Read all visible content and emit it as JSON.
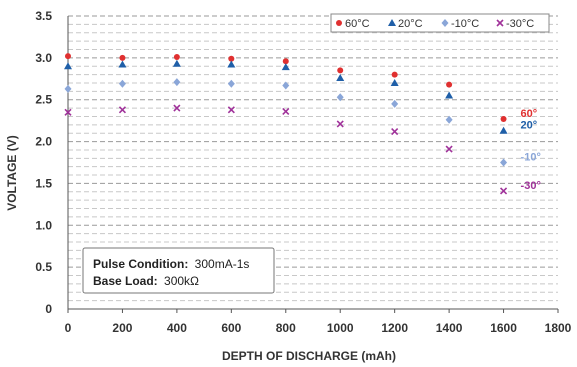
{
  "chart_data": {
    "type": "scatter",
    "xlabel": "DEPTH OF DISCHARGE (mAh)",
    "ylabel": "VOLTAGE (V)",
    "xlim": [
      0,
      1800
    ],
    "ylim": [
      0,
      3.5
    ],
    "x_ticks": [
      0,
      200,
      400,
      600,
      800,
      1000,
      1200,
      1400,
      1600,
      1800
    ],
    "y_ticks": [
      0,
      0.5,
      1.0,
      1.5,
      2.0,
      2.5,
      3.0,
      3.5
    ],
    "y_tick_labels": [
      "0",
      "0.5",
      "1.0",
      "1.5",
      "2.0",
      "2.5",
      "3.0",
      "3.5"
    ],
    "grid": "dashed horizontal",
    "legend_position": "top-right",
    "series": [
      {
        "name": "60°C",
        "end_label": "60°",
        "color": "#e03030",
        "marker": "circle",
        "x": [
          0,
          200,
          400,
          600,
          800,
          1000,
          1200,
          1400,
          1600
        ],
        "y": [
          3.02,
          3.0,
          3.01,
          2.99,
          2.96,
          2.85,
          2.8,
          2.68,
          2.27
        ]
      },
      {
        "name": "20°C",
        "end_label": "20°",
        "color": "#1f5fa8",
        "marker": "triangle",
        "x": [
          0,
          200,
          400,
          600,
          800,
          1000,
          1200,
          1400,
          1600
        ],
        "y": [
          2.9,
          2.92,
          2.93,
          2.92,
          2.89,
          2.76,
          2.7,
          2.55,
          2.13
        ]
      },
      {
        "name": "-10°C",
        "end_label": "-10°",
        "color": "#8aa6d8",
        "marker": "diamond",
        "x": [
          0,
          200,
          400,
          600,
          800,
          1000,
          1200,
          1400,
          1600
        ],
        "y": [
          2.63,
          2.69,
          2.71,
          2.69,
          2.67,
          2.53,
          2.45,
          2.26,
          1.75
        ]
      },
      {
        "name": "-30°C",
        "end_label": "-30°",
        "color": "#a0329a",
        "marker": "x",
        "x": [
          0,
          200,
          400,
          600,
          800,
          1000,
          1200,
          1400,
          1600
        ],
        "y": [
          2.35,
          2.38,
          2.4,
          2.38,
          2.36,
          2.21,
          2.12,
          1.91,
          1.41
        ]
      }
    ],
    "annotation": {
      "lines": [
        {
          "label": "Pulse Condition:",
          "value": "300mA-1s"
        },
        {
          "label": "Base Load:",
          "value": "300kΩ"
        }
      ]
    }
  }
}
